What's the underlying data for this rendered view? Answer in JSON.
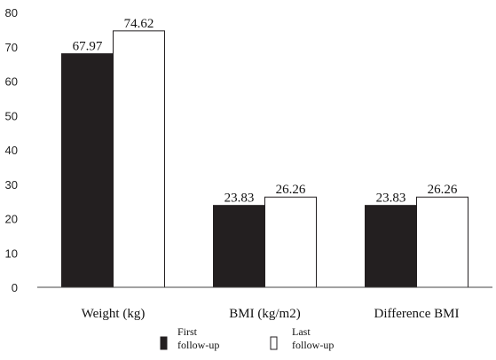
{
  "chart_data": {
    "type": "bar",
    "title": "",
    "xlabel": "",
    "ylabel": "",
    "categories": [
      "Weight (kg)",
      "BMI (kg/m2)",
      "Difference BMI"
    ],
    "series": [
      {
        "name": "First follow-up",
        "legend_lines": [
          "First",
          "follow-up"
        ],
        "values": [
          67.97,
          23.83,
          23.83
        ],
        "value_labels": [
          "67.97",
          "23.83",
          "23.83"
        ],
        "color": "#231f20"
      },
      {
        "name": "Last follow-up",
        "legend_lines": [
          "Last",
          "follow-up"
        ],
        "values": [
          74.62,
          26.26,
          26.26
        ],
        "value_labels": [
          "74.62",
          "26.26",
          "26.26"
        ],
        "color": "#ffffff"
      }
    ],
    "ylim": [
      0,
      80
    ],
    "yticks": [
      0,
      10,
      20,
      30,
      40,
      50,
      60,
      70,
      80
    ],
    "grid": false,
    "legend_position": "bottom"
  }
}
